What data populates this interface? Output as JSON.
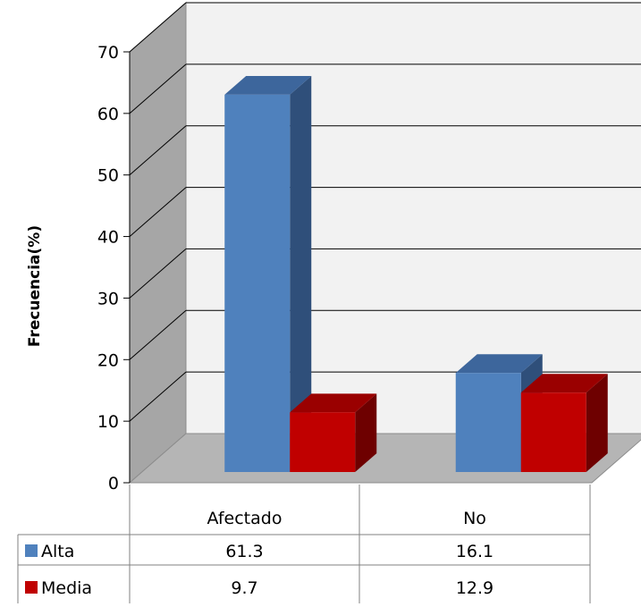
{
  "chart_data": {
    "type": "bar",
    "three_d": true,
    "ylabel": "Frecuencia(%)",
    "xlabel": "",
    "ylim": [
      0,
      70
    ],
    "yticks": [
      "0",
      "10",
      "20",
      "30",
      "40",
      "50",
      "60",
      "70"
    ],
    "categories": [
      "Afectado",
      "No"
    ],
    "series": [
      {
        "name": "Alta",
        "values": [
          61.3,
          16.1
        ],
        "value_labels": [
          "61.3",
          "16.1"
        ],
        "color": "#4f81bd",
        "dark": "#2f4f7a",
        "top": "#3d669c"
      },
      {
        "name": "Media",
        "values": [
          9.7,
          12.9
        ],
        "value_labels": [
          "9.7",
          "12.9"
        ],
        "color": "#c00000",
        "dark": "#6e0000",
        "top": "#9a0000"
      }
    ],
    "grid": true,
    "legend": "data-table",
    "colors": {
      "wall": "#f2f2f2",
      "side_wall": "#a6a6a6",
      "floor": "#b5b5b5",
      "grid": "#000000"
    }
  }
}
